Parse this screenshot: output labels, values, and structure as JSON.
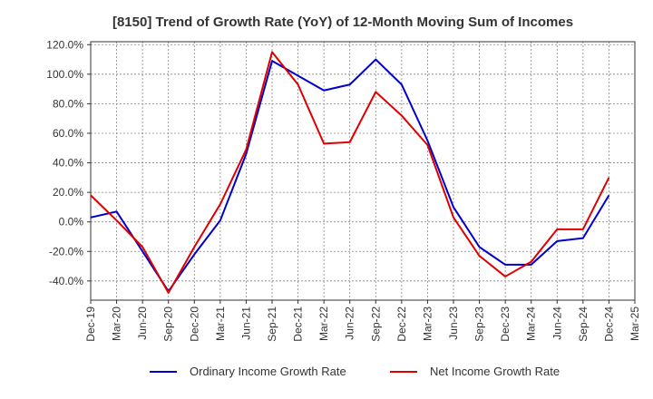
{
  "chart_data": {
    "type": "line",
    "title": "[8150]  Trend of Growth Rate (YoY) of 12-Month Moving Sum of Incomes",
    "xlabel": "",
    "ylabel": "",
    "x": [
      "Dec-19",
      "Mar-20",
      "Jun-20",
      "Sep-20",
      "Dec-20",
      "Mar-21",
      "Jun-21",
      "Sep-21",
      "Dec-21",
      "Mar-22",
      "Jun-22",
      "Sep-22",
      "Dec-22",
      "Mar-23",
      "Jun-23",
      "Sep-23",
      "Dec-23",
      "Mar-24",
      "Jun-24",
      "Sep-24",
      "Dec-24",
      "Mar-25"
    ],
    "x_tick_labels": [
      "Dec-19",
      "Mar-20",
      "Jun-20",
      "Sep-20",
      "Dec-20",
      "Mar-21",
      "Jun-21",
      "Sep-21",
      "Dec-21",
      "Mar-22",
      "Jun-22",
      "Sep-22",
      "Dec-22",
      "Mar-23",
      "Jun-23",
      "Sep-23",
      "Dec-23",
      "Mar-24",
      "Jun-24",
      "Sep-24",
      "Dec-24",
      "Mar-25"
    ],
    "y_tick_labels": [
      "120.0%",
      "100.0%",
      "80.0%",
      "60.0%",
      "40.0%",
      "20.0%",
      "0.0%",
      "-20.0%",
      "-40.0%"
    ],
    "y_ticks": [
      120,
      100,
      80,
      60,
      40,
      20,
      0,
      -20,
      -40
    ],
    "ylim": [
      -53,
      122
    ],
    "grid": true,
    "legend_position": "bottom",
    "series": [
      {
        "name": "Ordinary Income Growth Rate",
        "color": "#0000cc",
        "x": [
          "Dec-19",
          "Mar-20",
          "Jun-20",
          "Sep-20",
          "Dec-20",
          "Mar-21",
          "Jun-21",
          "Sep-21",
          "Dec-21",
          "Mar-22",
          "Jun-22",
          "Sep-22",
          "Dec-22",
          "Mar-23",
          "Jun-23",
          "Sep-23",
          "Dec-23",
          "Mar-24",
          "Jun-24",
          "Sep-24",
          "Dec-24"
        ],
        "values": [
          3,
          7,
          -20,
          -47,
          -22,
          1,
          46,
          109,
          99,
          89,
          93,
          110,
          93,
          55,
          10,
          -17,
          -29,
          -29,
          -13,
          -11,
          18
        ]
      },
      {
        "name": "Net Income Growth Rate",
        "color": "#dd0000",
        "x": [
          "Dec-19",
          "Mar-20",
          "Jun-20",
          "Sep-20",
          "Dec-20",
          "Mar-21",
          "Jun-21",
          "Sep-21",
          "Dec-21",
          "Mar-22",
          "Jun-22",
          "Sep-22",
          "Dec-22",
          "Mar-23",
          "Jun-23",
          "Sep-23",
          "Dec-23",
          "Mar-24",
          "Jun-24",
          "Sep-24",
          "Dec-24"
        ],
        "values": [
          18,
          1,
          -17,
          -48,
          -17,
          12,
          49,
          115,
          93,
          53,
          54,
          88,
          72,
          52,
          3,
          -23,
          -37,
          -27,
          -5,
          -5,
          30
        ]
      }
    ]
  }
}
